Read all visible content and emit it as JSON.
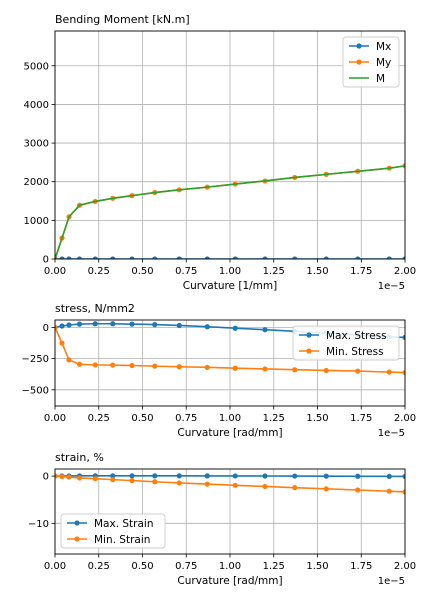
{
  "chart_data": [
    {
      "type": "line",
      "title": "Bending Moment [kN.m]",
      "xlabel": "Curvature [1/mm]",
      "ylabel": "",
      "x_exponent_label": "1e−5",
      "xlim": [
        0,
        2.0
      ],
      "ylim": [
        0,
        5900
      ],
      "xticks": [
        0,
        0.25,
        0.5,
        0.75,
        1.0,
        1.25,
        1.5,
        1.75,
        2.0
      ],
      "xtick_labels": [
        "0.00",
        "0.25",
        "0.50",
        "0.75",
        "1.00",
        "1.25",
        "1.50",
        "1.75",
        "2.00"
      ],
      "yticks": [
        0,
        1000,
        2000,
        3000,
        4000,
        5000
      ],
      "ytick_labels": [
        "0",
        "1000",
        "2000",
        "3000",
        "4000",
        "5000"
      ],
      "grid": true,
      "legend": "top-right",
      "x": [
        0,
        0.04,
        0.08,
        0.14,
        0.23,
        0.33,
        0.44,
        0.57,
        0.71,
        0.87,
        1.03,
        1.2,
        1.37,
        1.55,
        1.73,
        1.91,
        2.0
      ],
      "series": [
        {
          "name": "Mx",
          "color": "#1f77b4",
          "marker": true,
          "values": [
            0,
            0,
            0,
            0,
            0,
            0,
            0,
            0,
            0,
            0,
            0,
            0,
            0,
            0,
            0,
            0,
            0
          ]
        },
        {
          "name": "My",
          "color": "#ff7f0e",
          "marker": true,
          "values": [
            0,
            540,
            1090,
            1390,
            1490,
            1570,
            1640,
            1720,
            1790,
            1860,
            1940,
            2020,
            2110,
            2190,
            2270,
            2350,
            2410
          ]
        },
        {
          "name": "M",
          "color": "#2ca02c",
          "marker": false,
          "values": [
            0,
            540,
            1090,
            1390,
            1490,
            1570,
            1640,
            1720,
            1790,
            1860,
            1940,
            2020,
            2110,
            2190,
            2270,
            2350,
            2410
          ]
        }
      ]
    },
    {
      "type": "line",
      "title": "stress, N/mm2",
      "xlabel": "Curvature [rad/mm]",
      "ylabel": "",
      "x_exponent_label": "1e−5",
      "xlim": [
        0,
        2.0
      ],
      "ylim": [
        -630,
        60
      ],
      "xticks": [
        0,
        0.25,
        0.5,
        0.75,
        1.0,
        1.25,
        1.5,
        1.75,
        2.0
      ],
      "xtick_labels": [
        "0.00",
        "0.25",
        "0.50",
        "0.75",
        "1.00",
        "1.25",
        "1.50",
        "1.75",
        "2.00"
      ],
      "yticks": [
        0,
        -250,
        -500
      ],
      "ytick_labels": [
        "0",
        "−250",
        "−500"
      ],
      "grid": true,
      "legend": "top-right",
      "x": [
        0,
        0.04,
        0.08,
        0.14,
        0.23,
        0.33,
        0.44,
        0.57,
        0.71,
        0.87,
        1.03,
        1.2,
        1.37,
        1.55,
        1.73,
        1.91,
        2.0
      ],
      "series": [
        {
          "name": "Max. Stress",
          "color": "#1f77b4",
          "marker": true,
          "values": [
            0,
            12,
            20,
            27,
            30,
            30,
            27,
            23,
            16,
            6,
            -6,
            -18,
            -31,
            -45,
            -60,
            -75,
            -80
          ]
        },
        {
          "name": "Min. Stress",
          "color": "#ff7f0e",
          "marker": true,
          "values": [
            0,
            -125,
            -260,
            -295,
            -300,
            -302,
            -305,
            -310,
            -315,
            -320,
            -327,
            -333,
            -339,
            -345,
            -350,
            -358,
            -362
          ]
        }
      ]
    },
    {
      "type": "line",
      "title": "strain, %",
      "xlabel": "Curvature [rad/mm]",
      "ylabel": "",
      "x_exponent_label": "1e−5",
      "xlim": [
        0,
        2.0
      ],
      "ylim": [
        -16.5,
        1.5
      ],
      "xticks": [
        0,
        0.25,
        0.5,
        0.75,
        1.0,
        1.25,
        1.5,
        1.75,
        2.0
      ],
      "xtick_labels": [
        "0.00",
        "0.25",
        "0.50",
        "0.75",
        "1.00",
        "1.25",
        "1.50",
        "1.75",
        "2.00"
      ],
      "yticks": [
        0,
        -10
      ],
      "ytick_labels": [
        "0",
        "−10"
      ],
      "grid": true,
      "legend": "bottom-left",
      "x": [
        0,
        0.04,
        0.08,
        0.14,
        0.23,
        0.33,
        0.44,
        0.57,
        0.71,
        0.87,
        1.03,
        1.2,
        1.37,
        1.55,
        1.73,
        1.91,
        2.0
      ],
      "series": [
        {
          "name": "Max. Strain",
          "color": "#1f77b4",
          "marker": true,
          "values": [
            0,
            0.02,
            0.03,
            0.05,
            0.05,
            0.05,
            0.05,
            0.05,
            0.05,
            0.04,
            0.03,
            0.02,
            0.0,
            -0.02,
            -0.04,
            -0.06,
            -0.07
          ]
        },
        {
          "name": "Min. Strain",
          "color": "#ff7f0e",
          "marker": true,
          "values": [
            0,
            -0.1,
            -0.2,
            -0.4,
            -0.55,
            -0.75,
            -0.95,
            -1.2,
            -1.45,
            -1.7,
            -1.95,
            -2.2,
            -2.45,
            -2.7,
            -2.95,
            -3.2,
            -3.35
          ]
        }
      ]
    }
  ]
}
